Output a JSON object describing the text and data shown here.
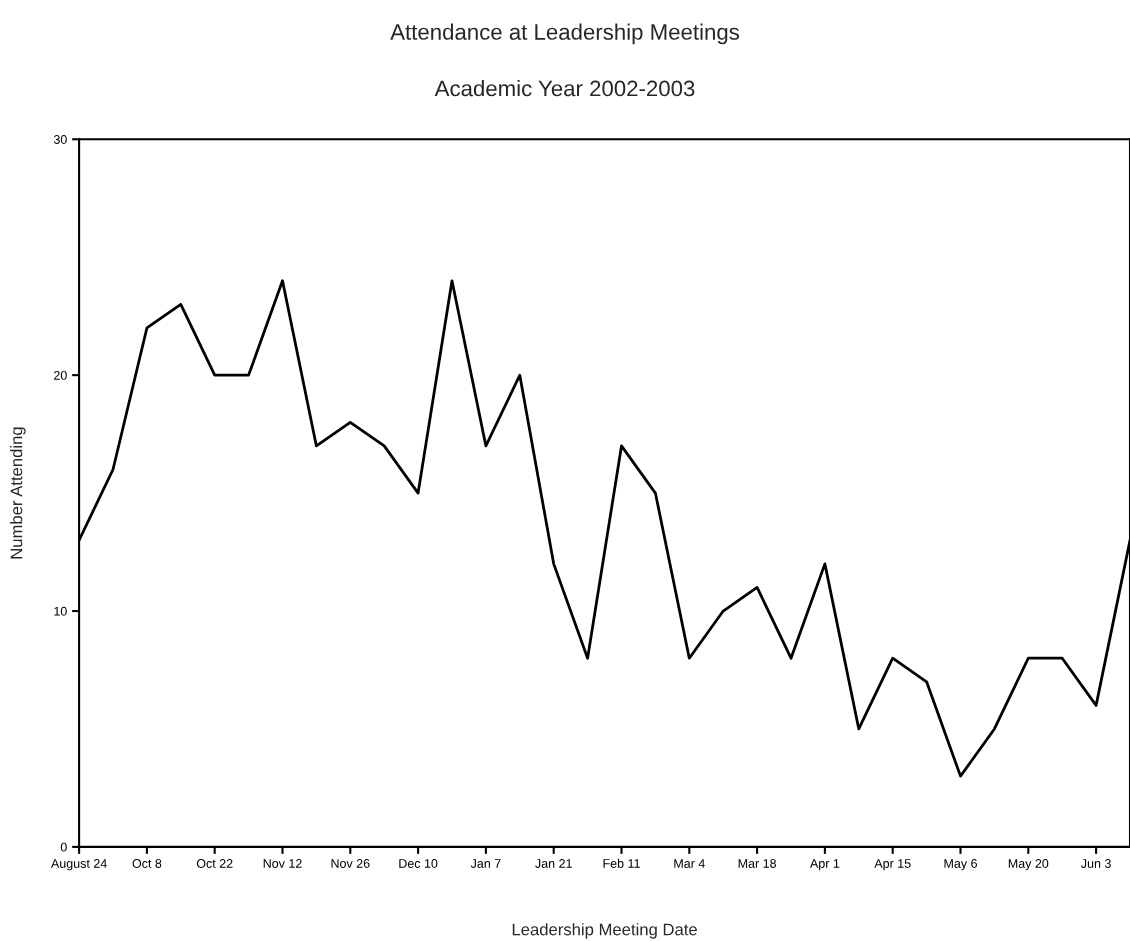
{
  "chart_data": {
    "type": "line",
    "title": "Attendance at Leadership Meetings",
    "subtitle": "Academic Year 2002-2003",
    "xlabel": "Leadership Meeting Date",
    "ylabel": "Number Attending",
    "categories": [
      "August 24",
      null,
      "Oct 8",
      null,
      "Oct 22",
      null,
      "Nov 12",
      null,
      "Nov 26",
      null,
      "Dec 10",
      null,
      "Jan 7",
      null,
      "Jan 21",
      null,
      "Feb 11",
      null,
      "Mar 4",
      null,
      "Mar 18",
      null,
      "Apr 1",
      null,
      "Apr 15",
      null,
      "May 6",
      null,
      "May 20",
      null,
      "Jun 3",
      null
    ],
    "series": [
      {
        "color": "#000000",
        "values": [
          13,
          16,
          22,
          23,
          20,
          20,
          24,
          17,
          18,
          17,
          15,
          24,
          17,
          20,
          12,
          8,
          17,
          15,
          8,
          10,
          11,
          8,
          12,
          5,
          8,
          7,
          3,
          5,
          8,
          8,
          6,
          13
        ]
      }
    ],
    "ylim": [
      0,
      30
    ],
    "yticks": [
      0,
      10,
      20,
      30
    ],
    "grid": false,
    "marker": "none",
    "line_style": "solid"
  }
}
